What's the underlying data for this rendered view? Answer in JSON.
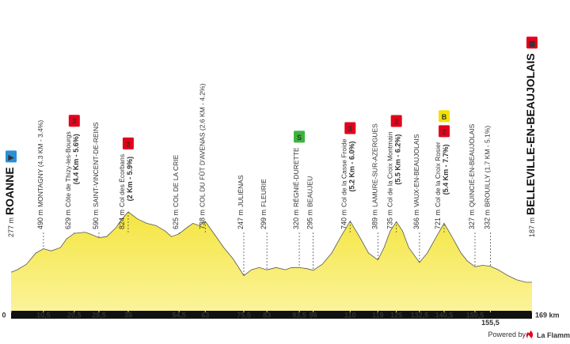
{
  "chart_data": {
    "type": "area",
    "color": "#f4e53f",
    "x": [
      0,
      2,
      5,
      8,
      10.5,
      13,
      16,
      18,
      20.5,
      24,
      26,
      28.5,
      31,
      34,
      36,
      38,
      41,
      44,
      47,
      50,
      52,
      54.5,
      57,
      59,
      61,
      63,
      66,
      69,
      72,
      75.5,
      78,
      80.5,
      83,
      86,
      89,
      91,
      93.5,
      96,
      98,
      101,
      104,
      107,
      110,
      113,
      116,
      119,
      121,
      123,
      125,
      127,
      129,
      132.5,
      135,
      138,
      140.5,
      143,
      146,
      148,
      150.5,
      153,
      155.5,
      158,
      161,
      164,
      167,
      169
    ],
    "values": [
      277,
      300,
      350,
      450,
      490,
      470,
      500,
      580,
      629,
      640,
      620,
      590,
      600,
      680,
      760,
      824,
      760,
      720,
      700,
      650,
      600,
      625,
      680,
      720,
      700,
      738,
      620,
      500,
      400,
      247,
      300,
      320,
      299,
      320,
      300,
      320,
      320,
      310,
      295,
      350,
      450,
      600,
      740,
      600,
      450,
      389,
      500,
      650,
      735,
      650,
      500,
      366,
      450,
      600,
      721,
      600,
      450,
      380,
      327,
      340,
      332,
      300,
      250,
      210,
      187,
      187
    ],
    "xlim": [
      0,
      169
    ],
    "xticks": [
      0,
      {
        "value": 10.5,
        "label": "10,5"
      },
      {
        "value": 20.5,
        "label": "20,5"
      },
      {
        "value": 28.5,
        "label": "28,5"
      },
      38,
      {
        "value": 54.5,
        "label": "54,5"
      },
      63,
      {
        "value": 75.5,
        "label": "75,5"
      },
      83,
      {
        "value": 93.5,
        "label": "93,5"
      },
      98,
      110,
      119,
      125,
      {
        "value": 132.5,
        "label": "132,5"
      },
      {
        "value": 140.5,
        "label": "140,5"
      },
      {
        "value": 150.5,
        "label": "150,5"
      },
      {
        "value": 155.5,
        "label": "155,5"
      },
      {
        "value": 169,
        "label": "169 km"
      }
    ],
    "waypoints": [
      {
        "alt": "277 m",
        "name": "ROANNE",
        "badges": [
          {
            "label": "▶",
            "color": "#2a8fd6"
          }
        ]
      },
      {
        "alt": "490 m",
        "name": "MONTAGNY (4.3 KM - 3.4%)"
      },
      {
        "alt": "629 m",
        "name": "Côte de Thizy-les-Bourgs",
        "detail": "(4.4 Km - 5.6%)",
        "badges": [
          {
            "label": "3",
            "color": "#e3001b"
          }
        ]
      },
      {
        "alt": "590 m",
        "name": "SAINT-VINCENT-DE-REINS"
      },
      {
        "alt": "824 m",
        "name": "Col des Écorbans",
        "detail": "(2 Km - 5.9%)",
        "badges": [
          {
            "label": "3",
            "color": "#e3001b"
          }
        ]
      },
      {
        "alt": "625 m",
        "name": "COL DE LA CRIE"
      },
      {
        "alt": "738 m",
        "name": "COL DU FÛT D'AVENAS (2.6 KM - 4.2%)"
      },
      {
        "alt": "247 m",
        "name": "JULIÉNAS"
      },
      {
        "alt": "299 m",
        "name": "FLEURIE"
      },
      {
        "alt": "320 m",
        "name": "RÉGNIÉ-DURETTE",
        "badges": [
          {
            "label": "S",
            "color": "#3cb43c"
          }
        ]
      },
      {
        "alt": "295 m",
        "name": "BEAUJEU"
      },
      {
        "alt": "740 m",
        "name": "Col de la Casse Froide",
        "detail": "(5.2 Km - 6.0%)",
        "badges": [
          {
            "label": "3",
            "color": "#e3001b"
          }
        ]
      },
      {
        "alt": "389 m",
        "name": "LAMURE-SUR-AZERGUES"
      },
      {
        "alt": "735 m",
        "name": "Col de la Croix Montmain",
        "detail": "(5.5 Km - 6.2%)",
        "badges": [
          {
            "label": "2",
            "color": "#e3001b"
          }
        ]
      },
      {
        "alt": "366 m",
        "name": "VAUX-EN-BEAUJOLAIS"
      },
      {
        "alt": "721 m",
        "name": "Col de la Croix Rosier",
        "detail": "(5.4 Km - 7.7%)",
        "badges": [
          {
            "label": "2",
            "color": "#e3001b"
          },
          {
            "label": "B",
            "color": "#f4e100"
          }
        ]
      },
      {
        "alt": "327 m",
        "name": "QUINCIÉ-EN-BEAUJOLAIS"
      },
      {
        "alt": "332 m",
        "name": "BROUILLY (1.7 KM - 5.1%)"
      },
      {
        "alt": "187 m",
        "name": "BELLEVILLE-EN-BEAUJOLAIS",
        "badges": [
          {
            "label": "▦",
            "color": "#e3001b"
          }
        ]
      }
    ]
  },
  "footer": {
    "powered": "Powered by",
    "brand": "La FlammeRouge"
  }
}
